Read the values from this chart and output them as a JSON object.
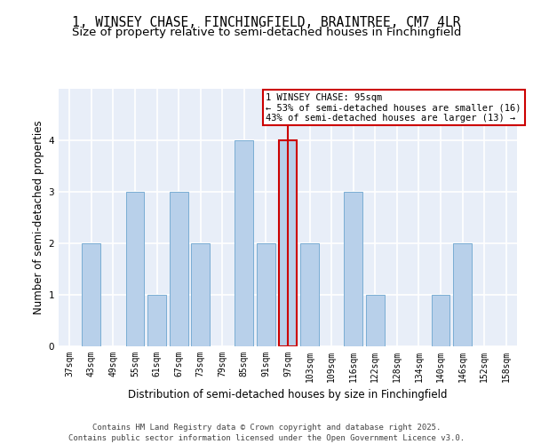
{
  "title_line1": "1, WINSEY CHASE, FINCHINGFIELD, BRAINTREE, CM7 4LR",
  "title_line2": "Size of property relative to semi-detached houses in Finchingfield",
  "xlabel": "Distribution of semi-detached houses by size in Finchingfield",
  "ylabel": "Number of semi-detached properties",
  "categories": [
    "37sqm",
    "43sqm",
    "49sqm",
    "55sqm",
    "61sqm",
    "67sqm",
    "73sqm",
    "79sqm",
    "85sqm",
    "91sqm",
    "97sqm",
    "103sqm",
    "109sqm",
    "116sqm",
    "122sqm",
    "128sqm",
    "134sqm",
    "140sqm",
    "146sqm",
    "152sqm",
    "158sqm"
  ],
  "values": [
    0,
    2,
    0,
    3,
    1,
    3,
    2,
    0,
    4,
    2,
    4,
    2,
    0,
    3,
    1,
    0,
    0,
    1,
    2,
    0,
    0
  ],
  "highlight_index": 10,
  "highlight_label": "1 WINSEY CHASE: 95sqm",
  "annotation_line2": "← 53% of semi-detached houses are smaller (16)",
  "annotation_line3": "43% of semi-detached houses are larger (13) →",
  "bar_color": "#b8d0ea",
  "bar_edgecolor": "#7aadd4",
  "highlight_bar_edgecolor": "#cc0000",
  "vline_color": "#cc0000",
  "annotation_box_edgecolor": "#cc0000",
  "annotation_box_facecolor": "#ffffff",
  "background_color": "#e8eef8",
  "grid_color": "#ffffff",
  "ylim": [
    0,
    5
  ],
  "yticks": [
    0,
    1,
    2,
    3,
    4
  ],
  "title_fontsize": 10.5,
  "subtitle_fontsize": 9.5,
  "axis_label_fontsize": 8.5,
  "tick_fontsize": 7,
  "annotation_fontsize": 7.5,
  "footer_text": "Contains HM Land Registry data © Crown copyright and database right 2025.\nContains public sector information licensed under the Open Government Licence v3.0.",
  "footer_fontsize": 6.5
}
